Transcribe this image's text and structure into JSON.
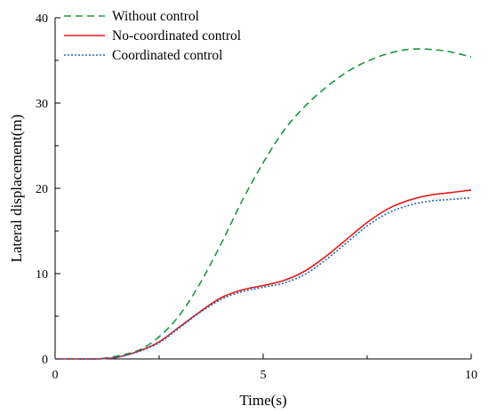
{
  "chart_data": {
    "type": "line",
    "title": "",
    "xlabel": "Time(s)",
    "ylabel": "Lateral displacement(m)",
    "xlim": [
      0,
      10
    ],
    "ylim": [
      0,
      40
    ],
    "xticks": [
      0,
      5,
      10
    ],
    "yticks": [
      0,
      10,
      20,
      30,
      40
    ],
    "grid": false,
    "legend_position": "top-left",
    "x": [
      0,
      0.5,
      1,
      1.2,
      1.5,
      2,
      2.5,
      3,
      3.5,
      4,
      4.5,
      5,
      5.5,
      6,
      6.5,
      7,
      7.5,
      8,
      8.5,
      9,
      9.5,
      10
    ],
    "series": [
      {
        "name": "Without control",
        "color": "#1a9641",
        "dash": "dashed",
        "values": [
          0,
          0,
          0,
          0.1,
          0.35,
          1.0,
          2.6,
          5.2,
          9.0,
          13.6,
          18.6,
          23.0,
          26.8,
          29.6,
          31.8,
          33.6,
          34.9,
          35.8,
          36.3,
          36.3,
          36.0,
          35.4
        ]
      },
      {
        "name": "No-coordinated control",
        "color": "#e31a1c",
        "dash": "solid",
        "values": [
          0,
          0,
          0,
          0.05,
          0.2,
          0.9,
          2.0,
          3.8,
          5.6,
          7.2,
          8.1,
          8.6,
          9.2,
          10.3,
          12.0,
          14.0,
          16.0,
          17.6,
          18.6,
          19.2,
          19.5,
          19.8
        ]
      },
      {
        "name": "Coordinated control",
        "color": "#2166ac",
        "dash": "dotted",
        "values": [
          0,
          0,
          0,
          0.05,
          0.2,
          0.85,
          1.9,
          3.7,
          5.5,
          7.0,
          7.9,
          8.4,
          8.9,
          9.9,
          11.6,
          13.6,
          15.6,
          17.1,
          18.0,
          18.5,
          18.7,
          18.9
        ]
      }
    ]
  }
}
